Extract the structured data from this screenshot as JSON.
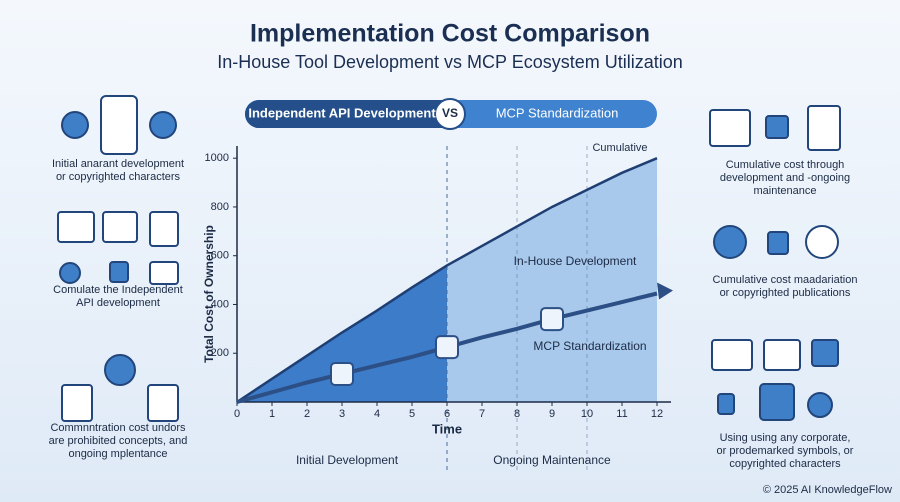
{
  "header": {
    "title": "Implementation Cost Comparison",
    "subtitle": "In-House Tool Development vs MCP Ecosystem Utilization"
  },
  "toggle": {
    "left": "Independent API Development",
    "middle": "VS",
    "right": "MCP Standardization"
  },
  "captions": {
    "left": [
      [
        "Initial anarant development",
        "or copyrighted characters"
      ],
      [
        "Comulate the Independent",
        "API development"
      ],
      [
        "Commnntration cost undors",
        "are prohibited concepts, and",
        "ongoing mplentance"
      ]
    ],
    "right": [
      [
        "Cumulative cost through",
        "development and -ongoing",
        "maintenance"
      ],
      [
        "Cumulative cost maadariation",
        "or copyrighted publications"
      ],
      [
        "Using using any corporate,",
        "or prodemarked symbols, or",
        "copyrighted characters"
      ]
    ]
  },
  "chart_data": {
    "type": "line",
    "x_label": "Time",
    "y_label": "Total Cost of Ownership",
    "x": [
      0,
      1,
      2,
      3,
      4,
      5,
      6,
      7,
      8,
      9,
      10,
      11,
      12
    ],
    "series": [
      {
        "name": "In-House Development",
        "color": "#1f3f73",
        "values": [
          0,
          95,
          190,
          285,
          375,
          470,
          560,
          640,
          720,
          800,
          870,
          940,
          1000
        ]
      },
      {
        "name": "MCP Standardization",
        "color": "#2c4f86",
        "values": [
          0,
          40,
          80,
          115,
          150,
          185,
          225,
          265,
          300,
          340,
          375,
          410,
          445
        ]
      }
    ],
    "xlim": [
      0,
      12.4
    ],
    "ylim": [
      0,
      1050
    ],
    "xticks": [
      0,
      1,
      2,
      3,
      4,
      5,
      6,
      7,
      8,
      9,
      10,
      11,
      12
    ],
    "yticks": [
      200,
      400,
      600,
      800,
      1000
    ],
    "markers": [
      6,
      8,
      10
    ],
    "annotation": "Cumulative",
    "phases": [
      "Initial Development",
      "Ongoing Maintenance"
    ],
    "grid": false
  },
  "footer": "© 2025 AI KnowledgeFlow"
}
